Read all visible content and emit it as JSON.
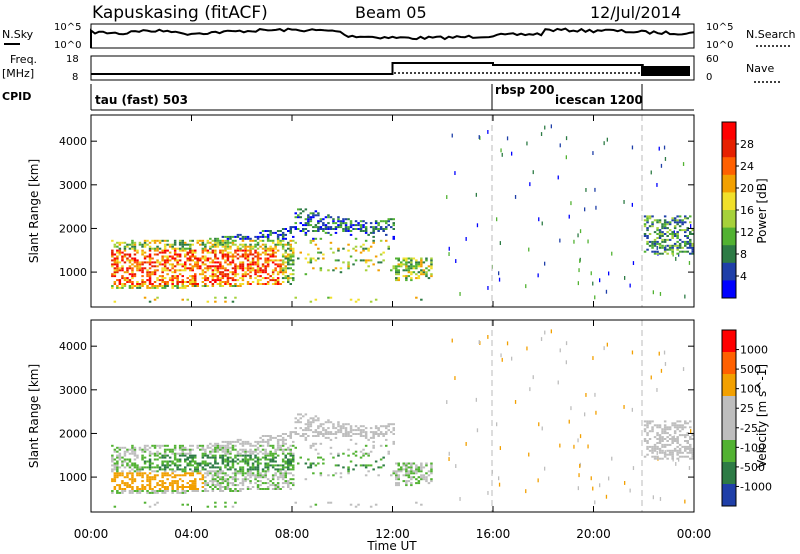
{
  "header": {
    "station": "Kapuskasing (fitACF)",
    "beam": "Beam 05",
    "date": "12/Jul/2014"
  },
  "summary_panels": {
    "nsky_label": "N.Sky",
    "nsky_ticks": [
      "10^5",
      "10^0"
    ],
    "nsearch_label": "N.Search",
    "nsearch_ticks": [
      "10^5",
      "10^0"
    ],
    "freq_label_1": "Freq.",
    "freq_label_2": "[MHz]",
    "freq_ticks": [
      "18",
      "8"
    ],
    "nave_label": "Nave",
    "nave_ticks": [
      "60",
      "0"
    ],
    "cpid_label": "CPID",
    "cpid_programs": [
      {
        "name": "tau (fast) 503",
        "start": 0
      },
      {
        "name": "rbsp 200",
        "start": 16
      },
      {
        "name": "icescan 1200",
        "start": 18
      }
    ]
  },
  "time_axis": {
    "label": "Time UT",
    "ticks": [
      "00:00",
      "04:00",
      "08:00",
      "12:00",
      "16:00",
      "20:00",
      "00:00"
    ]
  },
  "chart_data": [
    {
      "type": "heatmap",
      "title": "",
      "xlabel": "Time UT",
      "ylabel": "Slant Range [km]",
      "xlim": [
        0,
        24
      ],
      "ylim": [
        200,
        4600
      ],
      "yticks": [
        "1000",
        "2000",
        "3000",
        "4000"
      ],
      "colorbar_label": "Power [dB]",
      "colorbar_ticks": [
        "28",
        "24",
        "20",
        "16",
        "12",
        "8",
        "4"
      ],
      "colorbar_colors": [
        "#0000ff",
        "#1f3fa8",
        "#2d7b45",
        "#52b232",
        "#a6d13a",
        "#f1e02a",
        "#f2a000",
        "#ff6000",
        "#e62000",
        "#ff0000"
      ],
      "series": [
        {
          "name": "Power",
          "note": "main echo band 600-2600 km, 01:00-13:00 UT; sporadic echoes after 16:00 UT"
        }
      ]
    },
    {
      "type": "heatmap",
      "title": "",
      "xlabel": "Time UT",
      "ylabel": "Slant Range [km]",
      "xlim": [
        0,
        24
      ],
      "ylim": [
        200,
        4600
      ],
      "yticks": [
        "1000",
        "2000",
        "3000",
        "4000"
      ],
      "colorbar_label": "Velocity [m s^-1]",
      "colorbar_ticks": [
        "1000",
        "500",
        "100",
        "25",
        "-25",
        "-100",
        "-500",
        "-1000"
      ],
      "colorbar_colors": [
        "#1f3fa8",
        "#2d7b45",
        "#52b232",
        "#bebebe",
        "#bebebe",
        "#f2a000",
        "#ff6000",
        "#ff0000"
      ]
    }
  ]
}
